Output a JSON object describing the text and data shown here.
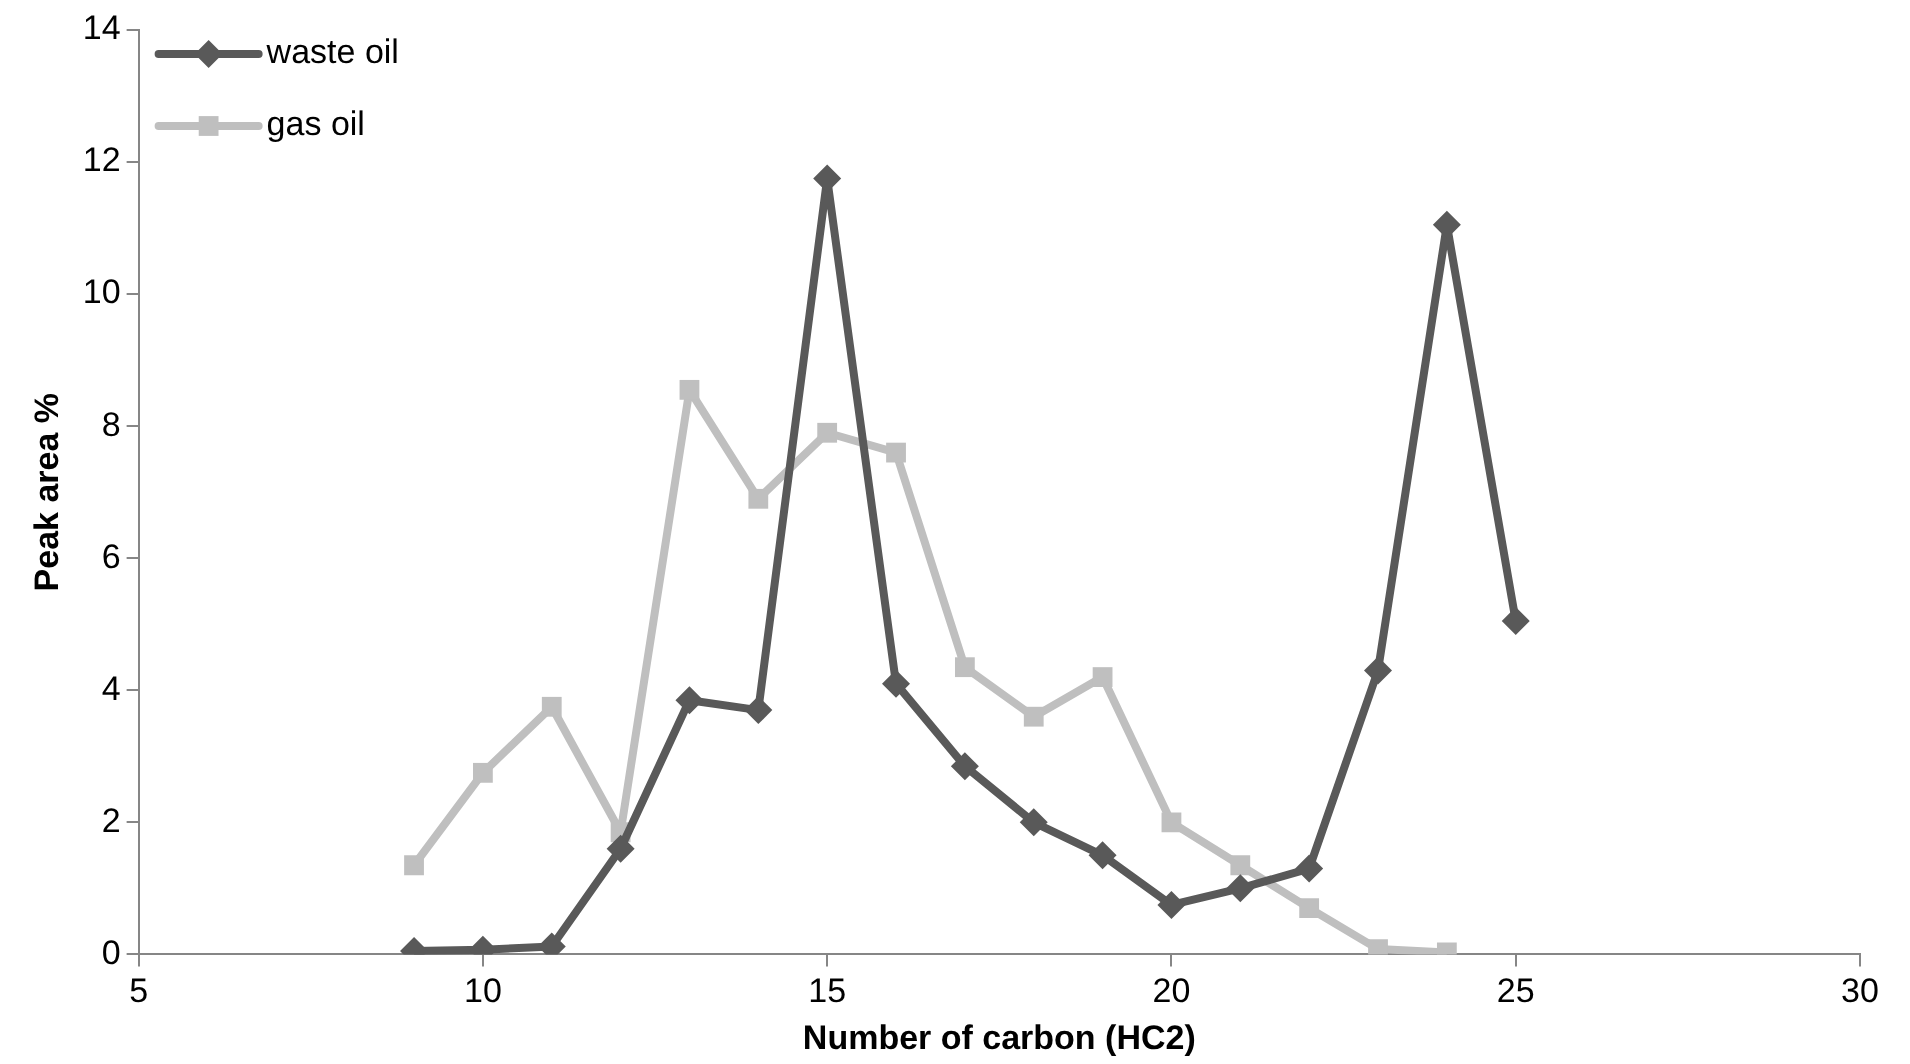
{
  "chart_data": {
    "type": "line",
    "xlabel": "Number of carbon (HC2)",
    "ylabel": "Peak area %",
    "xlim": [
      5,
      30
    ],
    "xticks": [
      5,
      10,
      15,
      20,
      25,
      30
    ],
    "ylim": [
      0,
      14
    ],
    "yticks": [
      0,
      2,
      4,
      6,
      8,
      10,
      12,
      14
    ],
    "grid": false,
    "legend": "top left",
    "line_style": "solid",
    "series": [
      {
        "name": "waste oil",
        "color": "#595959",
        "marker": "diamond",
        "x": [
          9,
          10,
          11,
          12,
          13,
          14,
          15,
          16,
          17,
          18,
          19,
          20,
          21,
          22,
          23,
          24,
          25
        ],
        "values": [
          0.05,
          0.07,
          0.12,
          1.6,
          3.85,
          3.7,
          11.75,
          4.1,
          2.85,
          2.0,
          1.5,
          0.75,
          1.0,
          1.3,
          4.3,
          11.05,
          5.05
        ]
      },
      {
        "name": "gas oil",
        "color": "#bfbfbf",
        "marker": "square",
        "x": [
          9,
          10,
          11,
          12,
          13,
          14,
          15,
          16,
          17,
          18,
          19,
          20,
          21,
          22,
          23,
          24
        ],
        "values": [
          1.35,
          2.75,
          3.75,
          1.85,
          8.55,
          6.9,
          7.9,
          7.6,
          4.35,
          3.6,
          4.2,
          2.0,
          1.35,
          0.7,
          0.08,
          0.03
        ]
      }
    ]
  }
}
